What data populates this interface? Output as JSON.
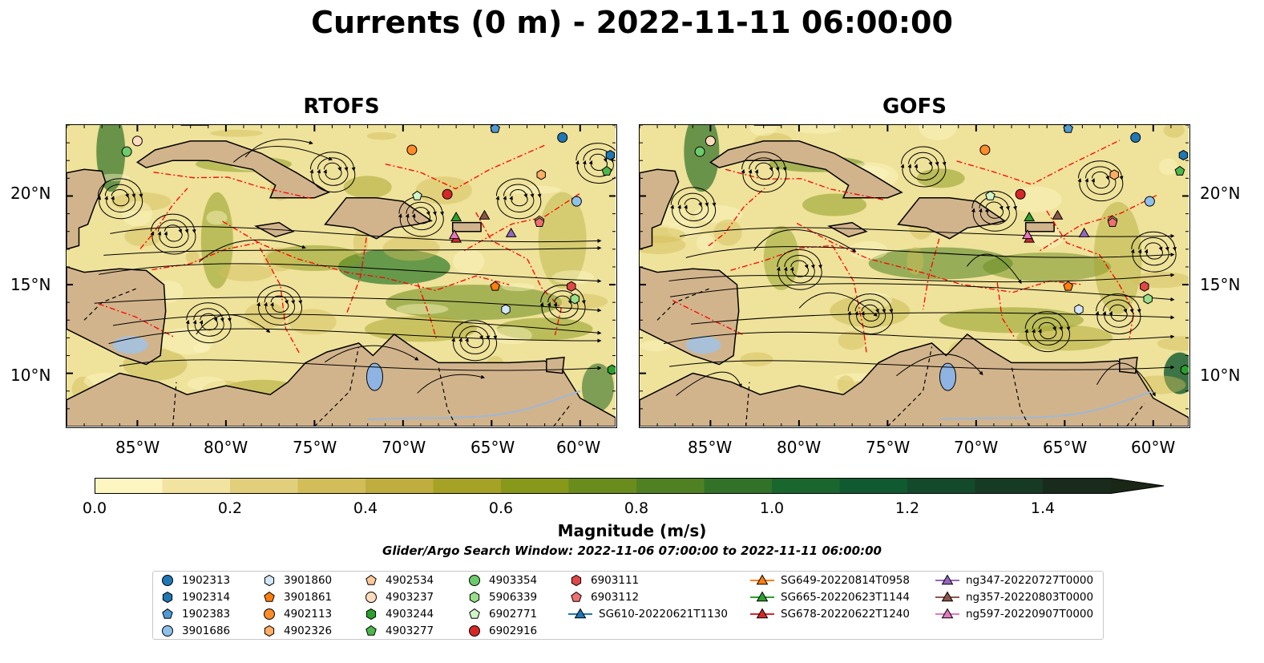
{
  "title": "Currents (0 m) - 2022-11-11 06:00:00",
  "panels": [
    {
      "title": "RTOFS"
    },
    {
      "title": "GOFS"
    }
  ],
  "axes": {
    "x_ticks": [
      "85°W",
      "80°W",
      "75°W",
      "70°W",
      "65°W",
      "60°W"
    ],
    "y_ticks": [
      "20°N",
      "15°N",
      "10°N"
    ]
  },
  "colorbar": {
    "ticks": [
      "0.0",
      "0.2",
      "0.4",
      "0.6",
      "0.8",
      "1.0",
      "1.2",
      "1.4"
    ],
    "label": "Magnitude (m/s)",
    "colors": [
      "#fdf6c3",
      "#f2e3a0",
      "#e2cf7b",
      "#d2bd59",
      "#bfae3d",
      "#a5a226",
      "#88981a",
      "#6a8c1d",
      "#4f8123",
      "#327228",
      "#1a662f",
      "#0f5a30",
      "#134a2c",
      "#173a25",
      "#182b1c",
      "#1a2717"
    ]
  },
  "search_window": "Glider/Argo Search Window: 2022-11-06 07:00:00 to 2022-11-11 06:00:00",
  "legend": {
    "items": [
      {
        "label": "1902313",
        "marker": "circle",
        "color": "#1f77b4"
      },
      {
        "label": "1902314",
        "marker": "hexagon",
        "color": "#1f77b4"
      },
      {
        "label": "1902383",
        "marker": "pentagon",
        "color": "#4f9ad6"
      },
      {
        "label": "3901686",
        "marker": "circle",
        "color": "#8ec1ea"
      },
      {
        "label": "3901860",
        "marker": "hexagon",
        "color": "#d4e6f9"
      },
      {
        "label": "3901861",
        "marker": "pentagon",
        "color": "#ff7f0e"
      },
      {
        "label": "4902113",
        "marker": "circle",
        "color": "#ff8c2a"
      },
      {
        "label": "4902326",
        "marker": "hexagon",
        "color": "#ffae66"
      },
      {
        "label": "4902534",
        "marker": "pentagon",
        "color": "#ffc899"
      },
      {
        "label": "4903237",
        "marker": "circle",
        "color": "#ffdcbe"
      },
      {
        "label": "4903244",
        "marker": "hexagon",
        "color": "#2ca02c"
      },
      {
        "label": "4903277",
        "marker": "pentagon",
        "color": "#4cb84c"
      },
      {
        "label": "4903354",
        "marker": "circle",
        "color": "#6ccb6c"
      },
      {
        "label": "5906339",
        "marker": "hexagon",
        "color": "#98df8a"
      },
      {
        "label": "6902771",
        "marker": "pentagon",
        "color": "#cff5c8"
      },
      {
        "label": "6902916",
        "marker": "circle",
        "color": "#d62728"
      },
      {
        "label": "6903111",
        "marker": "hexagon",
        "color": "#e04848"
      },
      {
        "label": "6903112",
        "marker": "pentagon",
        "color": "#ef7070"
      },
      {
        "label": "SG610-20220621T1130",
        "marker": "triangle-line",
        "color": "#1f77b4"
      },
      {
        "label": "SG649-20220814T0958",
        "marker": "triangle-line",
        "color": "#ff7f0e"
      },
      {
        "label": "SG665-20220623T1144",
        "marker": "triangle-line",
        "color": "#2ca02c"
      },
      {
        "label": "SG678-20220622T1240",
        "marker": "triangle-line",
        "color": "#d62728"
      },
      {
        "label": "ng347-20220727T0000",
        "marker": "triangle-line",
        "color": "#9467bd"
      },
      {
        "label": "ng357-20220803T0000",
        "marker": "triangle-line",
        "color": "#8c564b"
      },
      {
        "label": "ng597-20220907T0000",
        "marker": "triangle-line",
        "color": "#e377c2"
      }
    ]
  },
  "map": {
    "lon_range": [
      -89,
      -58
    ],
    "lat_range": [
      7,
      24
    ],
    "colors": {
      "land": "#d2b48c",
      "ocean": "#efe29a",
      "strong": "#2e7a2a",
      "lake": "#8fb4e3",
      "eez": "#ff0000"
    }
  }
}
